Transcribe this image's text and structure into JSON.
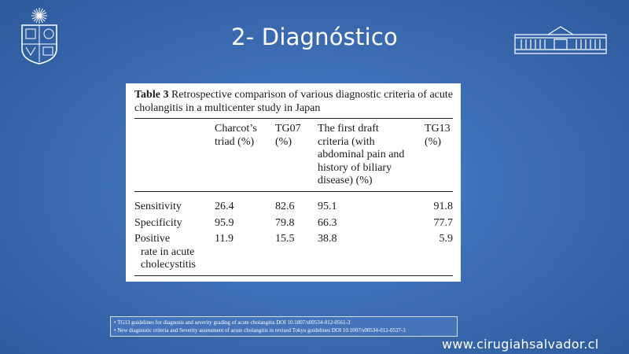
{
  "slide": {
    "title": "2- Diagnóstico",
    "website": "www.cirugiahsalvador.cl"
  },
  "table": {
    "label": "Table 3",
    "caption": "Retrospective comparison of various diagnostic criteria of acute cholangitis in a multicenter study in Japan",
    "headers": [
      [
        "Charcot’s",
        "triad (%)"
      ],
      [
        "TG07",
        "(%)"
      ],
      [
        "The first draft",
        "criteria (with",
        "abdominal pain and",
        "history of biliary",
        "disease) (%)"
      ],
      [
        "TG13",
        "(%)"
      ]
    ],
    "rows": [
      {
        "label": [
          "Sensitivity"
        ],
        "values": [
          "26.4",
          "82.6",
          "95.1",
          "91.8"
        ]
      },
      {
        "label": [
          "Specificity"
        ],
        "values": [
          "95.9",
          "79.8",
          "66.3",
          "77.7"
        ]
      },
      {
        "label": [
          "Positive",
          "rate in acute",
          "cholecystitis"
        ],
        "values": [
          "11.9",
          "15.5",
          "38.8",
          "5.9"
        ]
      }
    ]
  },
  "references": [
    "• TG13 guidelines for diagnosis and severity grading of acute cholangitis    DOI 10.1007/s00534-012-0561-3",
    "• New diagnostic criteria and Severity assessment of acute cholangitis in revised Tokyo guidelines DOI 10.1007/s00534-012-0537-3"
  ],
  "colors": {
    "background": "#3f6fb6",
    "text": "#ffffff"
  },
  "logos": {
    "left": "university-crest",
    "right": "hospital-building"
  }
}
